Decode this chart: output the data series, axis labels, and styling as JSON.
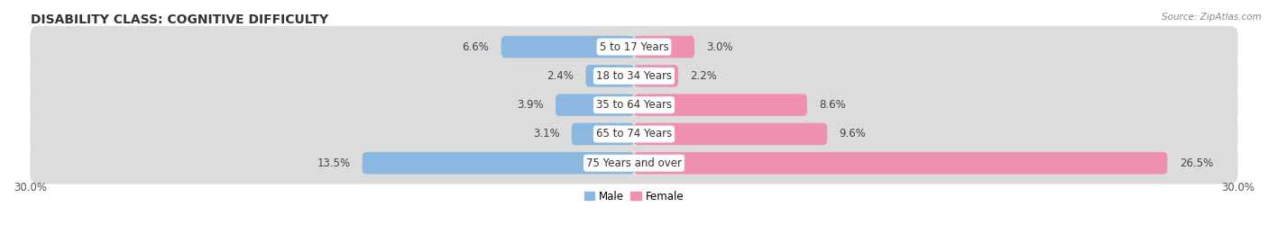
{
  "title": "DISABILITY CLASS: COGNITIVE DIFFICULTY",
  "source": "Source: ZipAtlas.com",
  "categories": [
    "5 to 17 Years",
    "18 to 34 Years",
    "35 to 64 Years",
    "65 to 74 Years",
    "75 Years and over"
  ],
  "male_values": [
    6.6,
    2.4,
    3.9,
    3.1,
    13.5
  ],
  "female_values": [
    3.0,
    2.2,
    8.6,
    9.6,
    26.5
  ],
  "male_color": "#8bb8e0",
  "female_color": "#f090b0",
  "row_bg_color": "#dcdcdc",
  "xlim": 30.0,
  "male_label": "Male",
  "female_label": "Female",
  "title_fontsize": 10,
  "label_fontsize": 8.5,
  "tick_fontsize": 8.5,
  "value_fontsize": 8.5,
  "background_color": "#ffffff"
}
